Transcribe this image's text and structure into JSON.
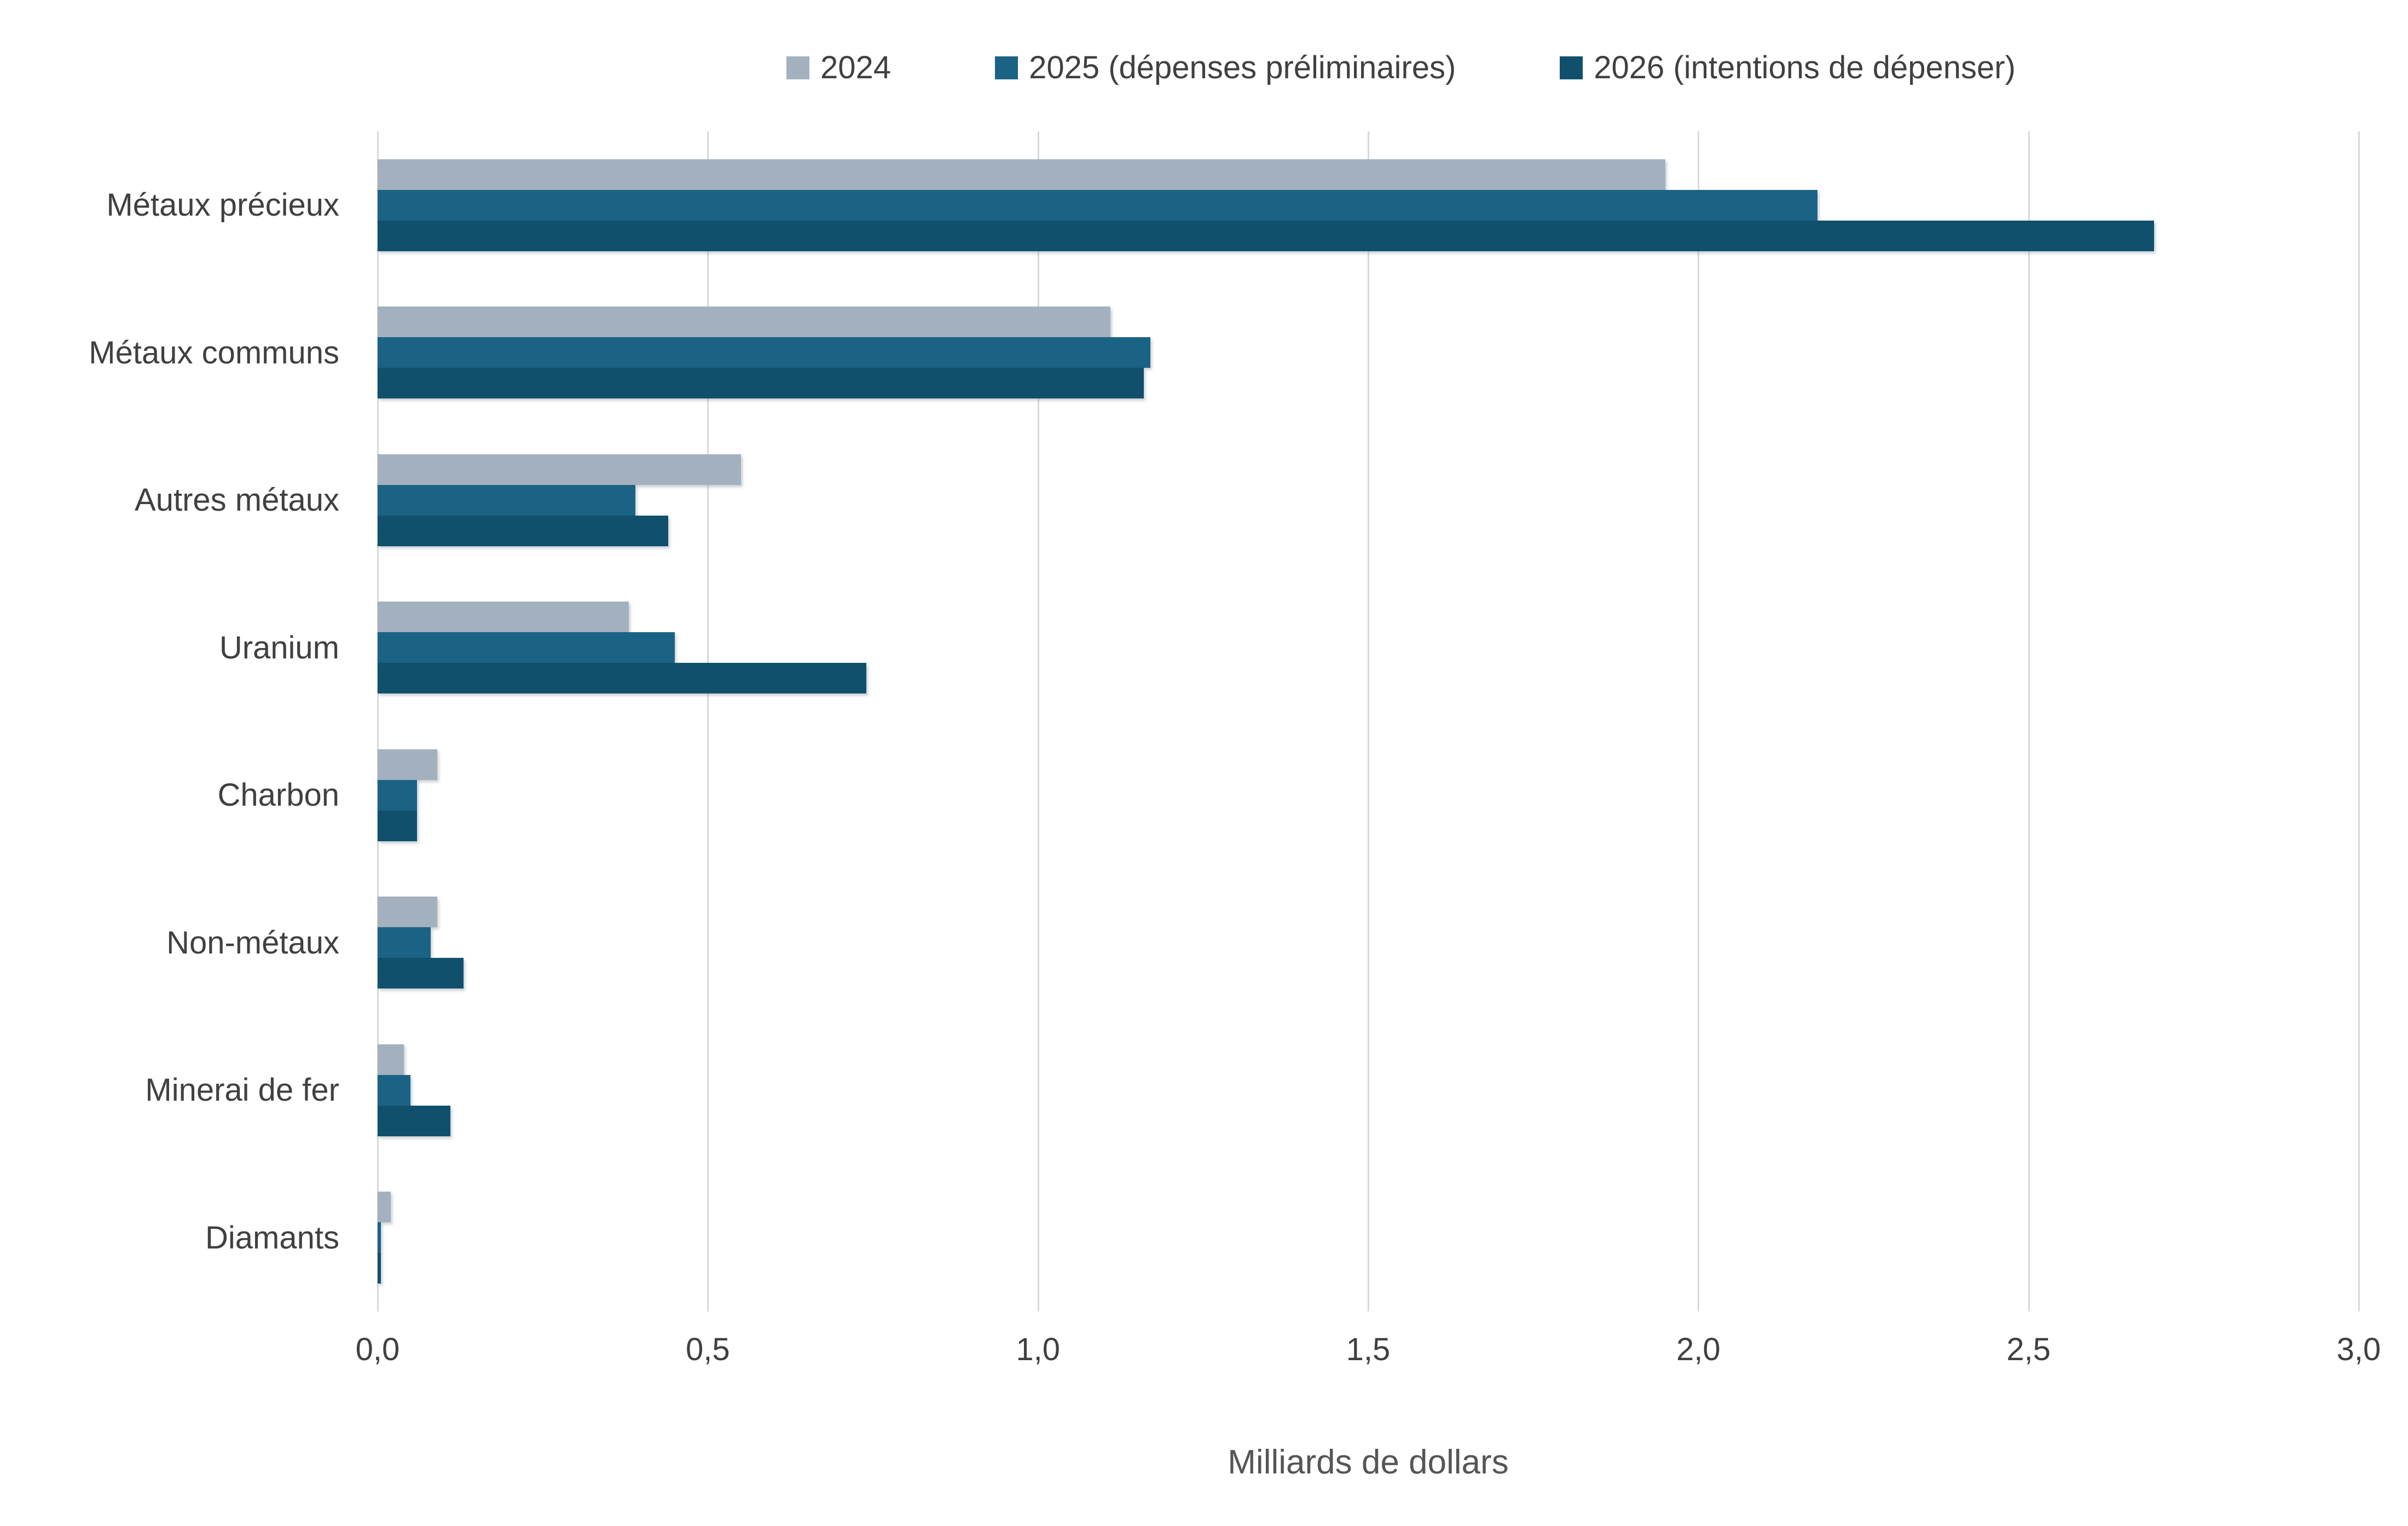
{
  "chart_data": {
    "type": "bar",
    "orientation": "horizontal",
    "title": "",
    "xlabel": "Milliards de dollars",
    "ylabel": "",
    "xlim": [
      0,
      3
    ],
    "xticks": [
      "0,0",
      "0,5",
      "1,0",
      "1,5",
      "2,0",
      "2,5",
      "3,0"
    ],
    "xtick_values": [
      0.0,
      0.5,
      1.0,
      1.5,
      2.0,
      2.5,
      3.0
    ],
    "grid": true,
    "legend_position": "top",
    "categories": [
      "Métaux précieux",
      "Métaux communs",
      "Autres métaux",
      "Uranium",
      "Charbon",
      "Non-métaux",
      "Minerai de fer",
      "Diamants"
    ],
    "series": [
      {
        "name": "2024",
        "color": "#A3B1BF",
        "values": [
          1.95,
          1.11,
          0.55,
          0.38,
          0.09,
          0.09,
          0.04,
          0.02
        ]
      },
      {
        "name": "2025 (dépenses préliminaires)",
        "color": "#1B6384",
        "values": [
          2.18,
          1.17,
          0.39,
          0.45,
          0.06,
          0.08,
          0.05,
          0.005
        ]
      },
      {
        "name": "2026 (intentions de dépenser)",
        "color": "#11506C",
        "values": [
          2.69,
          1.16,
          0.44,
          0.74,
          0.06,
          0.13,
          0.11,
          0.005
        ]
      }
    ]
  },
  "colors": {
    "gridline": "#d9d9d9",
    "label_text": "#404040",
    "axis_title_text": "#555555",
    "background": "#ffffff"
  }
}
